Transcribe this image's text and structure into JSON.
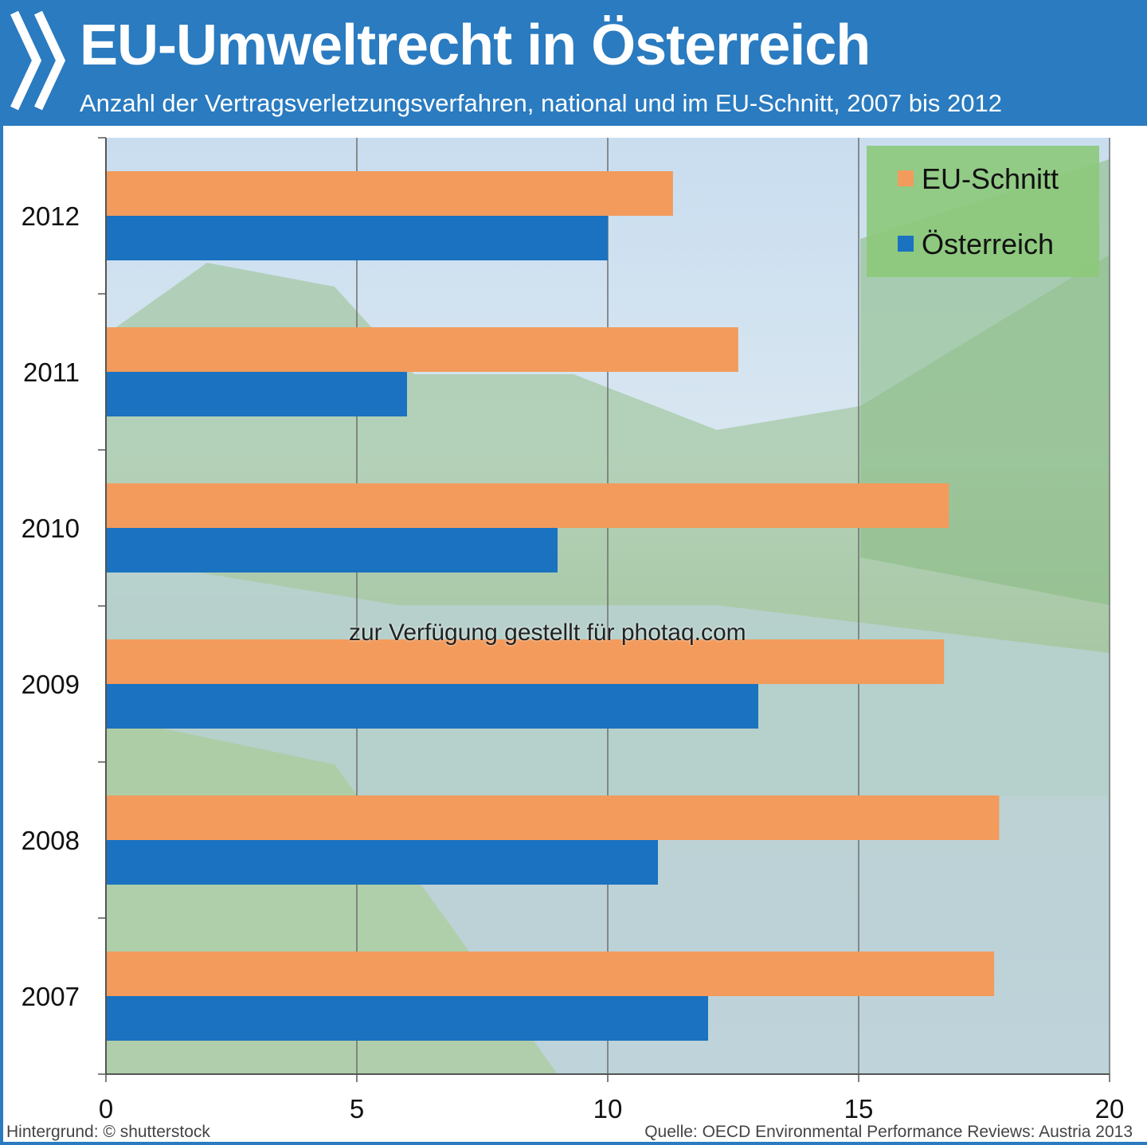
{
  "header": {
    "title": "EU-Umweltrecht in Österreich",
    "subtitle": "Anzahl der Vertragsverletzungsverfahren, national und im EU-Schnitt, 2007 bis 2012",
    "logo_icon": "double-chevron-icon"
  },
  "colors": {
    "header_bg": "#2a7bc0",
    "eu_series": "#f29b5c",
    "at_series": "#1a72c0",
    "legend_bg": "#8cc97a"
  },
  "chart_data": {
    "type": "bar",
    "orientation": "horizontal",
    "categories": [
      "2012",
      "2011",
      "2010",
      "2009",
      "2008",
      "2007"
    ],
    "series": [
      {
        "name": "EU-Schnitt",
        "values": [
          11.3,
          12.6,
          16.8,
          16.7,
          17.8,
          17.7
        ]
      },
      {
        "name": "Österreich",
        "values": [
          10,
          6,
          9,
          13,
          11,
          12
        ]
      }
    ],
    "xlim": [
      0,
      20
    ],
    "x_ticks": [
      "0",
      "5",
      "10",
      "15",
      "20"
    ],
    "grid": true,
    "legend_position": "top-right"
  },
  "footer": {
    "background_credit": "Hintergrund: © shutterstock",
    "source": "Quelle: OECD Environmental Performance Reviews: Austria 2013",
    "watermark": "zur Verfügung gestellt für photaq.com"
  }
}
